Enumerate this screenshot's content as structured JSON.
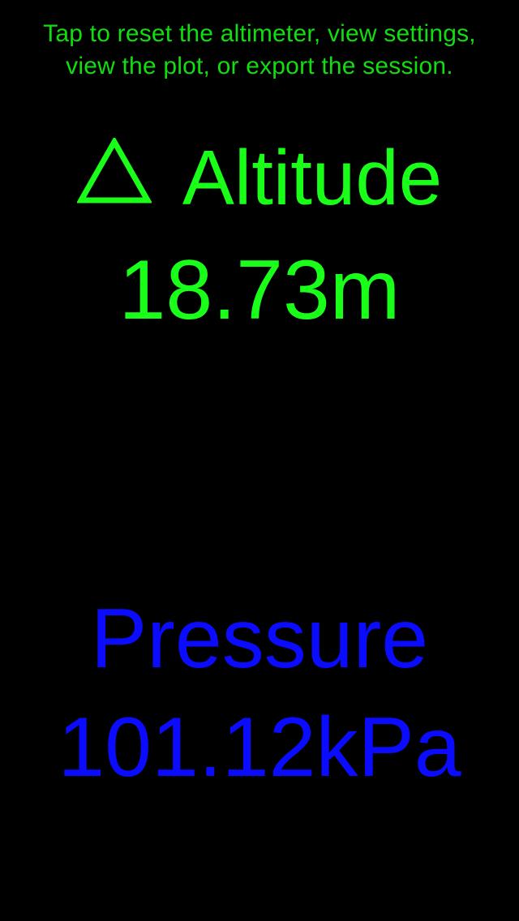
{
  "colors": {
    "background": "#000000",
    "altitude": "#1aff1a",
    "hint": "#11dd11",
    "pressure": "#0b0bff"
  },
  "hint": {
    "line1": "Tap to reset the altimeter, view settings,",
    "line2": "view the plot, or export the session."
  },
  "altitude": {
    "icon": "delta-triangle-icon",
    "label": "Altitude",
    "value": "18.73m"
  },
  "pressure": {
    "label": "Pressure",
    "value": "101.12kPa"
  }
}
